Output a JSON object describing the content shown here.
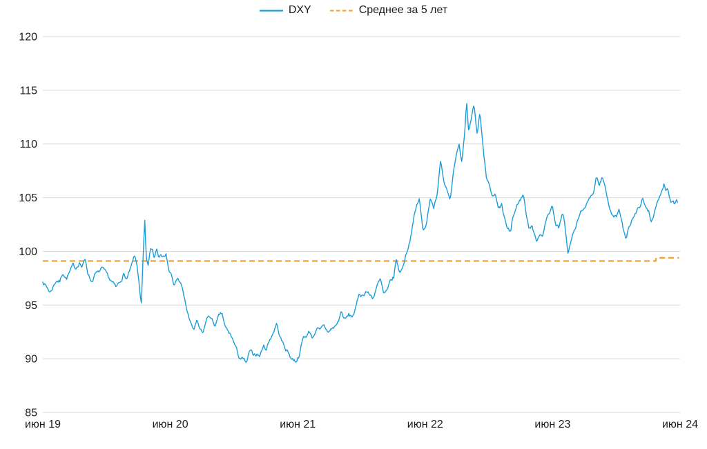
{
  "colors": {
    "background": "#FFFFFF",
    "grid": "#D9D9D9",
    "text": "#1C1C1C",
    "dxy_line": "#1A9CD8",
    "average_line": "#F2A33A"
  },
  "chart_data": {
    "type": "line",
    "title": "",
    "grid": "horizontal",
    "legend_position": "top-center",
    "x_axis": {
      "unit": "months since Jun 2019",
      "range_months": [
        0,
        60
      ],
      "ticks": [
        {
          "label": "июн 19",
          "t": 0
        },
        {
          "label": "июн 20",
          "t": 12
        },
        {
          "label": "июн 21",
          "t": 24
        },
        {
          "label": "июн 22",
          "t": 36
        },
        {
          "label": "июн 23",
          "t": 48
        },
        {
          "label": "июн 24",
          "t": 60
        }
      ]
    },
    "y_axis": {
      "min": 85,
      "max": 120,
      "step": 5,
      "ticks": [
        120,
        115,
        110,
        105,
        100,
        95,
        90,
        85
      ]
    },
    "series": [
      {
        "name": "DXY",
        "color": "#1A9CD8",
        "style": "solid",
        "points": [
          [
            0,
            97.3
          ],
          [
            0.35,
            96.7
          ],
          [
            0.7,
            96.2
          ],
          [
            1,
            96.8
          ],
          [
            1.3,
            97.4
          ],
          [
            1.6,
            97.2
          ],
          [
            1.9,
            98.1
          ],
          [
            2.2,
            97.5
          ],
          [
            2.5,
            98
          ],
          [
            2.8,
            98.5
          ],
          [
            3.1,
            98.4
          ],
          [
            3.45,
            99.1
          ],
          [
            3.7,
            98.6
          ],
          [
            4,
            99.2
          ],
          [
            4.25,
            98
          ],
          [
            4.6,
            97.2
          ],
          [
            4.9,
            97.9
          ],
          [
            5.2,
            97.9
          ],
          [
            5.5,
            98.3
          ],
          [
            5.8,
            98
          ],
          [
            6.1,
            97.6
          ],
          [
            6.5,
            97.1
          ],
          [
            6.9,
            96.5
          ],
          [
            7.25,
            97.1
          ],
          [
            7.6,
            97.9
          ],
          [
            7.9,
            97.4
          ],
          [
            8.3,
            98.4
          ],
          [
            8.65,
            99.5
          ],
          [
            8.9,
            98.4
          ],
          [
            9.05,
            97.2
          ],
          [
            9.27,
            94.9
          ],
          [
            9.45,
            99.6
          ],
          [
            9.6,
            102.8
          ],
          [
            9.75,
            99.1
          ],
          [
            9.9,
            98.5
          ],
          [
            10.1,
            99.9
          ],
          [
            10.3,
            100.2
          ],
          [
            10.5,
            99.3
          ],
          [
            10.7,
            100.4
          ],
          [
            10.9,
            99.6
          ],
          [
            11.1,
            100.1
          ],
          [
            11.35,
            99.5
          ],
          [
            11.6,
            99.9
          ],
          [
            11.85,
            98.3
          ],
          [
            12.1,
            97.8
          ],
          [
            12.35,
            96.6
          ],
          [
            12.6,
            97.4
          ],
          [
            12.9,
            97.3
          ],
          [
            13.2,
            96.2
          ],
          [
            13.5,
            94.8
          ],
          [
            13.85,
            93.4
          ],
          [
            14.2,
            92.7
          ],
          [
            14.5,
            93.4
          ],
          [
            14.8,
            92.6
          ],
          [
            15.05,
            92.2
          ],
          [
            15.35,
            93.4
          ],
          [
            15.65,
            94.1
          ],
          [
            15.95,
            93.5
          ],
          [
            16.25,
            93.1
          ],
          [
            16.6,
            93.9
          ],
          [
            16.9,
            94.1
          ],
          [
            17.15,
            92.9
          ],
          [
            17.45,
            92.4
          ],
          [
            17.8,
            92
          ],
          [
            18.1,
            91.2
          ],
          [
            18.45,
            90.2
          ],
          [
            18.75,
            90
          ],
          [
            19.2,
            89.5
          ],
          [
            19.45,
            90.6
          ],
          [
            19.75,
            90.3
          ],
          [
            20.1,
            90.5
          ],
          [
            20.45,
            90.3
          ],
          [
            20.75,
            91.2
          ],
          [
            21.05,
            91
          ],
          [
            21.4,
            91.9
          ],
          [
            21.75,
            92.6
          ],
          [
            22,
            93.3
          ],
          [
            22.35,
            92
          ],
          [
            22.7,
            91.2
          ],
          [
            23.05,
            90.7
          ],
          [
            23.4,
            90.1
          ],
          [
            23.8,
            89.8
          ],
          [
            24.1,
            90.3
          ],
          [
            24.5,
            91.9
          ],
          [
            24.75,
            92.1
          ],
          [
            25.1,
            92.5
          ],
          [
            25.45,
            92
          ],
          [
            25.8,
            93
          ],
          [
            26.1,
            92.5
          ],
          [
            26.45,
            92.9
          ],
          [
            26.8,
            92.5
          ],
          [
            27.1,
            92.7
          ],
          [
            27.45,
            92.9
          ],
          [
            27.8,
            93.4
          ],
          [
            28.1,
            94.4
          ],
          [
            28.45,
            93.6
          ],
          [
            28.8,
            94
          ],
          [
            29.1,
            93.9
          ],
          [
            29.45,
            94.6
          ],
          [
            29.8,
            96.1
          ],
          [
            30.1,
            95.9
          ],
          [
            30.45,
            96.4
          ],
          [
            30.8,
            95.9
          ],
          [
            31.1,
            95.7
          ],
          [
            31.45,
            96.8
          ],
          [
            31.8,
            97.3
          ],
          [
            32.1,
            95.9
          ],
          [
            32.45,
            96.2
          ],
          [
            32.75,
            97.2
          ],
          [
            33.05,
            97.5
          ],
          [
            33.25,
            99.3
          ],
          [
            33.55,
            98.1
          ],
          [
            33.85,
            98.4
          ],
          [
            34.2,
            99.8
          ],
          [
            34.55,
            101
          ],
          [
            34.95,
            103.2
          ],
          [
            35.2,
            104.2
          ],
          [
            35.45,
            104.9
          ],
          [
            35.8,
            101.8
          ],
          [
            36.1,
            102.6
          ],
          [
            36.5,
            105.2
          ],
          [
            36.8,
            103.9
          ],
          [
            37.1,
            105.1
          ],
          [
            37.45,
            108.6
          ],
          [
            37.8,
            106.5
          ],
          [
            38.1,
            105.9
          ],
          [
            38.35,
            104.7
          ],
          [
            38.7,
            107.5
          ],
          [
            38.95,
            108.8
          ],
          [
            39.2,
            109.7
          ],
          [
            39.45,
            108.2
          ],
          [
            39.65,
            110.3
          ],
          [
            39.75,
            111.4
          ],
          [
            39.9,
            114.1
          ],
          [
            40.1,
            111
          ],
          [
            40.35,
            112.5
          ],
          [
            40.6,
            113.9
          ],
          [
            40.9,
            110.9
          ],
          [
            41.15,
            112.9
          ],
          [
            41.5,
            109
          ],
          [
            41.8,
            106.4
          ],
          [
            42.1,
            105.9
          ],
          [
            42.35,
            104.9
          ],
          [
            42.6,
            105.2
          ],
          [
            42.9,
            103.8
          ],
          [
            43.2,
            104.2
          ],
          [
            43.5,
            102.9
          ],
          [
            43.8,
            101.8
          ],
          [
            44.05,
            101.7
          ],
          [
            44.2,
            103
          ],
          [
            44.5,
            103.8
          ],
          [
            44.8,
            104.6
          ],
          [
            45.25,
            105.3
          ],
          [
            45.5,
            103.6
          ],
          [
            45.8,
            102.1
          ],
          [
            46.05,
            102.5
          ],
          [
            46.45,
            100.9
          ],
          [
            46.8,
            101.7
          ],
          [
            47.1,
            101.8
          ],
          [
            47.5,
            103.2
          ],
          [
            47.95,
            104.3
          ],
          [
            48.3,
            102.6
          ],
          [
            48.6,
            102.2
          ],
          [
            48.9,
            103.3
          ],
          [
            49.1,
            102.9
          ],
          [
            49.45,
            99.8
          ],
          [
            49.8,
            101.2
          ],
          [
            50.1,
            102
          ],
          [
            50.5,
            103.2
          ],
          [
            50.85,
            104.1
          ],
          [
            51.1,
            103.9
          ],
          [
            51.5,
            105.1
          ],
          [
            51.9,
            105.8
          ],
          [
            52.1,
            107
          ],
          [
            52.4,
            106
          ],
          [
            52.7,
            106.7
          ],
          [
            53.1,
            105.1
          ],
          [
            53.45,
            103.9
          ],
          [
            53.8,
            103.4
          ],
          [
            54.05,
            103.2
          ],
          [
            54.25,
            104
          ],
          [
            54.55,
            102.5
          ],
          [
            54.9,
            100.9
          ],
          [
            55.1,
            102.1
          ],
          [
            55.3,
            102.6
          ],
          [
            55.6,
            103.4
          ],
          [
            55.9,
            103.6
          ],
          [
            56.15,
            104.1
          ],
          [
            56.45,
            104.9
          ],
          [
            56.8,
            103.9
          ],
          [
            57.05,
            103.8
          ],
          [
            57.3,
            102.8
          ],
          [
            57.6,
            103.8
          ],
          [
            57.9,
            104.5
          ],
          [
            58.2,
            105.2
          ],
          [
            58.5,
            106.3
          ],
          [
            58.65,
            105.8
          ],
          [
            58.8,
            106.1
          ],
          [
            59,
            105.2
          ],
          [
            59.15,
            104.6
          ],
          [
            59.35,
            105
          ],
          [
            59.5,
            104.6
          ],
          [
            59.7,
            105.1
          ],
          [
            59.8,
            104.3
          ]
        ]
      },
      {
        "name": "Среднее за 5 лет",
        "color": "#F2A33A",
        "style": "dashed",
        "points": [
          [
            0,
            99.1
          ],
          [
            57.7,
            99.1
          ],
          [
            57.75,
            99.4
          ],
          [
            59.9,
            99.4
          ]
        ]
      }
    ]
  }
}
